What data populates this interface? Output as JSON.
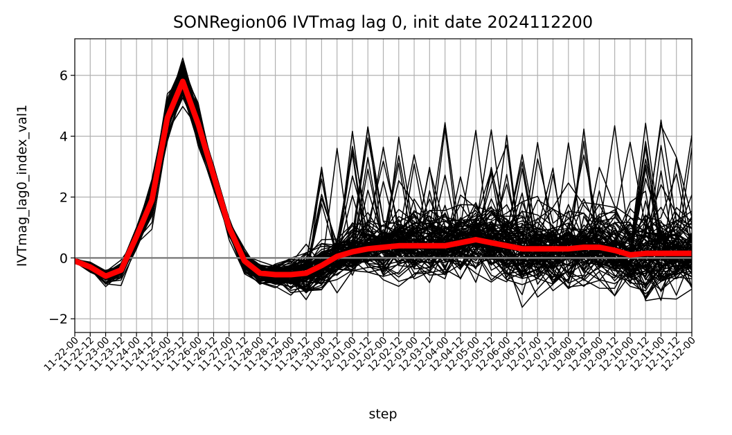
{
  "chart_data": {
    "type": "line",
    "title": "SONRegion06 IVTmag lag 0, init date 2024112200",
    "xlabel": "step",
    "ylabel": "IVTmag_lag0_index_val1",
    "ylim": [
      -2.45,
      7.2
    ],
    "yticks": [
      -2,
      0,
      2,
      4,
      6
    ],
    "ytick_labels": [
      "−2",
      "0",
      "2",
      "4",
      "6"
    ],
    "grid": true,
    "zero_line": 0,
    "x": [
      "11-22-00",
      "11-22-12",
      "11-23-00",
      "11-23-12",
      "11-24-00",
      "11-24-12",
      "11-25-00",
      "11-25-12",
      "11-26-00",
      "11-26-12",
      "11-27-00",
      "11-27-12",
      "11-28-00",
      "11-28-12",
      "11-29-00",
      "11-29-12",
      "11-30-00",
      "11-30-12",
      "12-01-00",
      "12-01-12",
      "12-02-00",
      "12-02-12",
      "12-03-00",
      "12-03-12",
      "12-04-00",
      "12-04-12",
      "12-05-00",
      "12-05-12",
      "12-06-00",
      "12-06-12",
      "12-07-00",
      "12-07-12",
      "12-08-00",
      "12-08-12",
      "12-09-00",
      "12-09-12",
      "12-10-00",
      "12-10-12",
      "12-11-00",
      "12-11-12",
      "12-12-00"
    ],
    "series": [
      {
        "values": [
          -0.1,
          -0.3,
          -0.6,
          -0.4,
          0.7,
          1.9,
          4.6,
          5.8,
          4.4,
          2.7,
          1.0,
          -0.1,
          -0.5,
          -0.55,
          -0.55,
          -0.5,
          -0.25,
          0.05,
          0.2,
          0.3,
          0.35,
          0.4,
          0.4,
          0.4,
          0.4,
          0.5,
          0.6,
          0.5,
          0.4,
          0.3,
          0.3,
          0.3,
          0.3,
          0.35,
          0.35,
          0.25,
          0.1,
          0.15,
          0.15,
          0.15,
          0.15
        ],
        "color": "#ff0000"
      }
    ],
    "ensemble": {
      "members": 100,
      "color": "#000000"
    },
    "colors": {
      "mean": "#ff0000",
      "members": "#000000",
      "zero_line": "#808080",
      "grid": "#b0b0b0"
    }
  }
}
